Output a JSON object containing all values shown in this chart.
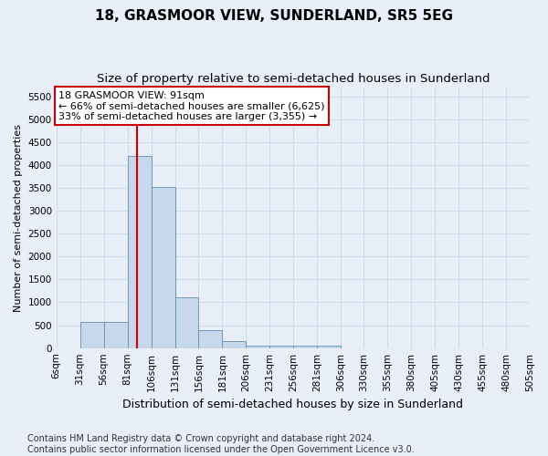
{
  "title1": "18, GRASMOOR VIEW, SUNDERLAND, SR5 5EG",
  "title2": "Size of property relative to semi-detached houses in Sunderland",
  "xlabel": "Distribution of semi-detached houses by size in Sunderland",
  "ylabel": "Number of semi-detached properties",
  "footer": "Contains HM Land Registry data © Crown copyright and database right 2024.\nContains public sector information licensed under the Open Government Licence v3.0.",
  "bin_edges": [
    6,
    31,
    56,
    81,
    106,
    131,
    156,
    181,
    206,
    231,
    256,
    281,
    306,
    330,
    355,
    380,
    405,
    430,
    455,
    480,
    505
  ],
  "bar_heights": [
    0,
    580,
    580,
    4200,
    3520,
    1100,
    400,
    150,
    60,
    50,
    50,
    50,
    0,
    0,
    0,
    0,
    0,
    0,
    0,
    0
  ],
  "bar_color": "#c8d8ec",
  "bar_edge_color": "#6090b0",
  "property_size": 91,
  "vline_color": "#cc0000",
  "annotation_line1": "18 GRASMOOR VIEW: 91sqm",
  "annotation_line2": "← 66% of semi-detached houses are smaller (6,625)",
  "annotation_line3": "33% of semi-detached houses are larger (3,355) →",
  "annotation_box_color": "#ffffff",
  "annotation_box_edge_color": "#cc0000",
  "ylim": [
    0,
    5700
  ],
  "yticks": [
    0,
    500,
    1000,
    1500,
    2000,
    2500,
    3000,
    3500,
    4000,
    4500,
    5000,
    5500
  ],
  "background_color": "#e8eff8",
  "grid_color": "#d0dcea",
  "title1_fontsize": 11,
  "title2_fontsize": 9.5,
  "xlabel_fontsize": 9,
  "ylabel_fontsize": 8,
  "tick_fontsize": 7.5,
  "footer_fontsize": 7
}
